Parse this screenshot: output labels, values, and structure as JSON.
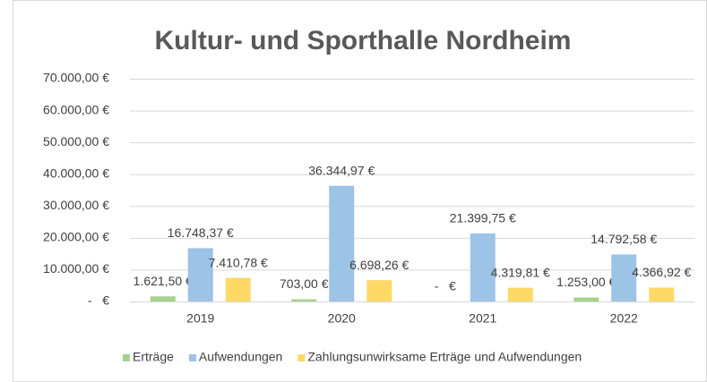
{
  "chart_data": {
    "type": "bar",
    "title": "Kultur- und Sporthalle Nordheim",
    "categories": [
      "2019",
      "2020",
      "2021",
      "2022"
    ],
    "series": [
      {
        "name": "Erträge",
        "color": "#a9d18e",
        "values": [
          1621.5,
          703,
          0,
          1253
        ],
        "value_labels": [
          "1.621,50 €",
          "703,00 €",
          "-   €",
          "1.253,00 €"
        ]
      },
      {
        "name": "Aufwendungen",
        "color": "#9dc3e6",
        "values": [
          16748.37,
          36344.97,
          21399.75,
          14792.58
        ],
        "value_labels": [
          "16.748,37 €",
          "36.344,97 €",
          "21.399,75 €",
          "14.792,58 €"
        ]
      },
      {
        "name": "Zahlungsunwirksame Erträge und Aufwendungen",
        "color": "#ffd966",
        "values": [
          7410.78,
          6698.26,
          4319.81,
          4366.92
        ],
        "value_labels": [
          "7.410,78 €",
          "6.698,26 €",
          "4.319,81 €",
          "4.366,92 €"
        ]
      }
    ],
    "ylim": [
      0,
      70000
    ],
    "yticks": [
      {
        "value": 0,
        "label": "-   €"
      },
      {
        "value": 10000,
        "label": "10.000,00 €"
      },
      {
        "value": 20000,
        "label": "20.000,00 €"
      },
      {
        "value": 30000,
        "label": "30.000,00 €"
      },
      {
        "value": 40000,
        "label": "40.000,00 €"
      },
      {
        "value": 50000,
        "label": "50.000,00 €"
      },
      {
        "value": 60000,
        "label": "60.000,00 €"
      },
      {
        "value": 70000,
        "label": "70.000,00 €"
      }
    ],
    "grid": true,
    "legend": "bottom"
  }
}
